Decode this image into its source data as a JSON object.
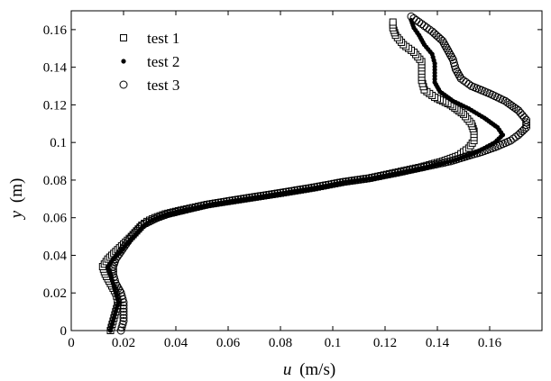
{
  "chart_data": {
    "type": "scatter",
    "xlabel_var": "u",
    "xlabel_unit": "(m/s)",
    "ylabel_var": "y",
    "ylabel_unit": "(m)",
    "xlim": [
      0,
      0.18
    ],
    "ylim": [
      0,
      0.17
    ],
    "xticks": [
      "0",
      "0.02",
      "0.04",
      "0.06",
      "0.08",
      "0.1",
      "0.12",
      "0.14",
      "0.16"
    ],
    "yticks": [
      "0",
      "0.02",
      "0.04",
      "0.06",
      "0.08",
      "0.1",
      "0.12",
      "0.14",
      "0.16"
    ],
    "grid": false,
    "legend_position": "top-left",
    "series": [
      {
        "name": "test 1",
        "marker": "square",
        "points": [
          [
            0.015,
            0.0
          ],
          [
            0.016,
            0.005
          ],
          [
            0.017,
            0.01
          ],
          [
            0.018,
            0.015
          ],
          [
            0.017,
            0.02
          ],
          [
            0.015,
            0.025
          ],
          [
            0.013,
            0.03
          ],
          [
            0.012,
            0.034
          ],
          [
            0.014,
            0.038
          ],
          [
            0.017,
            0.042
          ],
          [
            0.02,
            0.046
          ],
          [
            0.023,
            0.05
          ],
          [
            0.025,
            0.053
          ],
          [
            0.027,
            0.056
          ],
          [
            0.029,
            0.058
          ],
          [
            0.032,
            0.06
          ],
          [
            0.036,
            0.062
          ],
          [
            0.042,
            0.064
          ],
          [
            0.052,
            0.067
          ],
          [
            0.066,
            0.07
          ],
          [
            0.08,
            0.073
          ],
          [
            0.093,
            0.076
          ],
          [
            0.104,
            0.079
          ],
          [
            0.114,
            0.081
          ],
          [
            0.124,
            0.084
          ],
          [
            0.134,
            0.087
          ],
          [
            0.142,
            0.09
          ],
          [
            0.148,
            0.093
          ],
          [
            0.152,
            0.097
          ],
          [
            0.154,
            0.101
          ],
          [
            0.154,
            0.106
          ],
          [
            0.153,
            0.11
          ],
          [
            0.15,
            0.115
          ],
          [
            0.145,
            0.12
          ],
          [
            0.139,
            0.124
          ],
          [
            0.135,
            0.128
          ],
          [
            0.134,
            0.133
          ],
          [
            0.134,
            0.138
          ],
          [
            0.134,
            0.143
          ],
          [
            0.131,
            0.148
          ],
          [
            0.127,
            0.152
          ],
          [
            0.124,
            0.157
          ],
          [
            0.123,
            0.161
          ],
          [
            0.123,
            0.164
          ]
        ]
      },
      {
        "name": "test 2",
        "marker": "dot",
        "points": [
          [
            0.015,
            0.0
          ],
          [
            0.016,
            0.005
          ],
          [
            0.017,
            0.01
          ],
          [
            0.018,
            0.015
          ],
          [
            0.017,
            0.02
          ],
          [
            0.016,
            0.025
          ],
          [
            0.015,
            0.03
          ],
          [
            0.014,
            0.034
          ],
          [
            0.016,
            0.038
          ],
          [
            0.019,
            0.042
          ],
          [
            0.021,
            0.046
          ],
          [
            0.024,
            0.05
          ],
          [
            0.026,
            0.053
          ],
          [
            0.028,
            0.056
          ],
          [
            0.03,
            0.058
          ],
          [
            0.033,
            0.06
          ],
          [
            0.037,
            0.062
          ],
          [
            0.043,
            0.064
          ],
          [
            0.053,
            0.067
          ],
          [
            0.067,
            0.07
          ],
          [
            0.081,
            0.073
          ],
          [
            0.094,
            0.076
          ],
          [
            0.105,
            0.079
          ],
          [
            0.115,
            0.081
          ],
          [
            0.126,
            0.084
          ],
          [
            0.136,
            0.087
          ],
          [
            0.145,
            0.09
          ],
          [
            0.152,
            0.093
          ],
          [
            0.158,
            0.097
          ],
          [
            0.162,
            0.1
          ],
          [
            0.165,
            0.104
          ],
          [
            0.163,
            0.108
          ],
          [
            0.158,
            0.113
          ],
          [
            0.152,
            0.118
          ],
          [
            0.146,
            0.122
          ],
          [
            0.141,
            0.127
          ],
          [
            0.139,
            0.132
          ],
          [
            0.139,
            0.137
          ],
          [
            0.139,
            0.142
          ],
          [
            0.138,
            0.147
          ],
          [
            0.135,
            0.152
          ],
          [
            0.133,
            0.157
          ],
          [
            0.131,
            0.161
          ],
          [
            0.13,
            0.165
          ]
        ]
      },
      {
        "name": "test 3",
        "marker": "circle",
        "points": [
          [
            0.019,
            0.0
          ],
          [
            0.02,
            0.005
          ],
          [
            0.02,
            0.01
          ],
          [
            0.02,
            0.015
          ],
          [
            0.019,
            0.02
          ],
          [
            0.017,
            0.025
          ],
          [
            0.016,
            0.03
          ],
          [
            0.016,
            0.034
          ],
          [
            0.017,
            0.038
          ],
          [
            0.019,
            0.042
          ],
          [
            0.021,
            0.046
          ],
          [
            0.023,
            0.05
          ],
          [
            0.025,
            0.053
          ],
          [
            0.027,
            0.056
          ],
          [
            0.03,
            0.058
          ],
          [
            0.033,
            0.06
          ],
          [
            0.037,
            0.062
          ],
          [
            0.043,
            0.064
          ],
          [
            0.052,
            0.067
          ],
          [
            0.065,
            0.07
          ],
          [
            0.079,
            0.073
          ],
          [
            0.092,
            0.076
          ],
          [
            0.104,
            0.079
          ],
          [
            0.114,
            0.081
          ],
          [
            0.125,
            0.084
          ],
          [
            0.135,
            0.087
          ],
          [
            0.145,
            0.09
          ],
          [
            0.152,
            0.093
          ],
          [
            0.157,
            0.095
          ],
          [
            0.163,
            0.098
          ],
          [
            0.168,
            0.101
          ],
          [
            0.171,
            0.104
          ],
          [
            0.174,
            0.108
          ],
          [
            0.174,
            0.112
          ],
          [
            0.171,
            0.117
          ],
          [
            0.166,
            0.122
          ],
          [
            0.16,
            0.126
          ],
          [
            0.153,
            0.13
          ],
          [
            0.149,
            0.134
          ],
          [
            0.147,
            0.139
          ],
          [
            0.146,
            0.144
          ],
          [
            0.144,
            0.149
          ],
          [
            0.142,
            0.154
          ],
          [
            0.138,
            0.159
          ],
          [
            0.134,
            0.163
          ],
          [
            0.13,
            0.167
          ]
        ]
      }
    ]
  }
}
